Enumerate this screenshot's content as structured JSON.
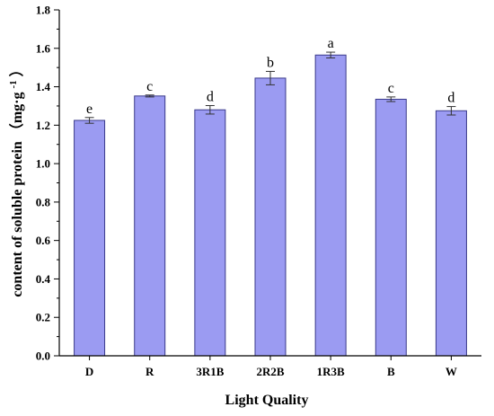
{
  "chart_data": {
    "type": "bar",
    "categories": [
      "D",
      "R",
      "3R1B",
      "2R2B",
      "1R3B",
      "B",
      "W"
    ],
    "values": [
      1.225,
      1.352,
      1.28,
      1.445,
      1.565,
      1.335,
      1.275
    ],
    "errors": [
      0.015,
      0.005,
      0.022,
      0.035,
      0.015,
      0.012,
      0.022
    ],
    "significance": [
      "e",
      "c",
      "d",
      "b",
      "a",
      "c",
      "d"
    ],
    "xlabel": "Light Quality",
    "ylabel_main": "content of soluble protein",
    "ylabel_unit_open": "（mg·g",
    "ylabel_unit_sup": "-1",
    "ylabel_unit_close": "）",
    "ylim": [
      0,
      1.8
    ],
    "yticks": [
      "0.0",
      "0.2",
      "0.4",
      "0.6",
      "0.8",
      "1.0",
      "1.2",
      "1.4",
      "1.6",
      "1.8"
    ],
    "grid": false,
    "bar_color": "#9b9bf2",
    "bar_edge": "#3a3a8a"
  }
}
